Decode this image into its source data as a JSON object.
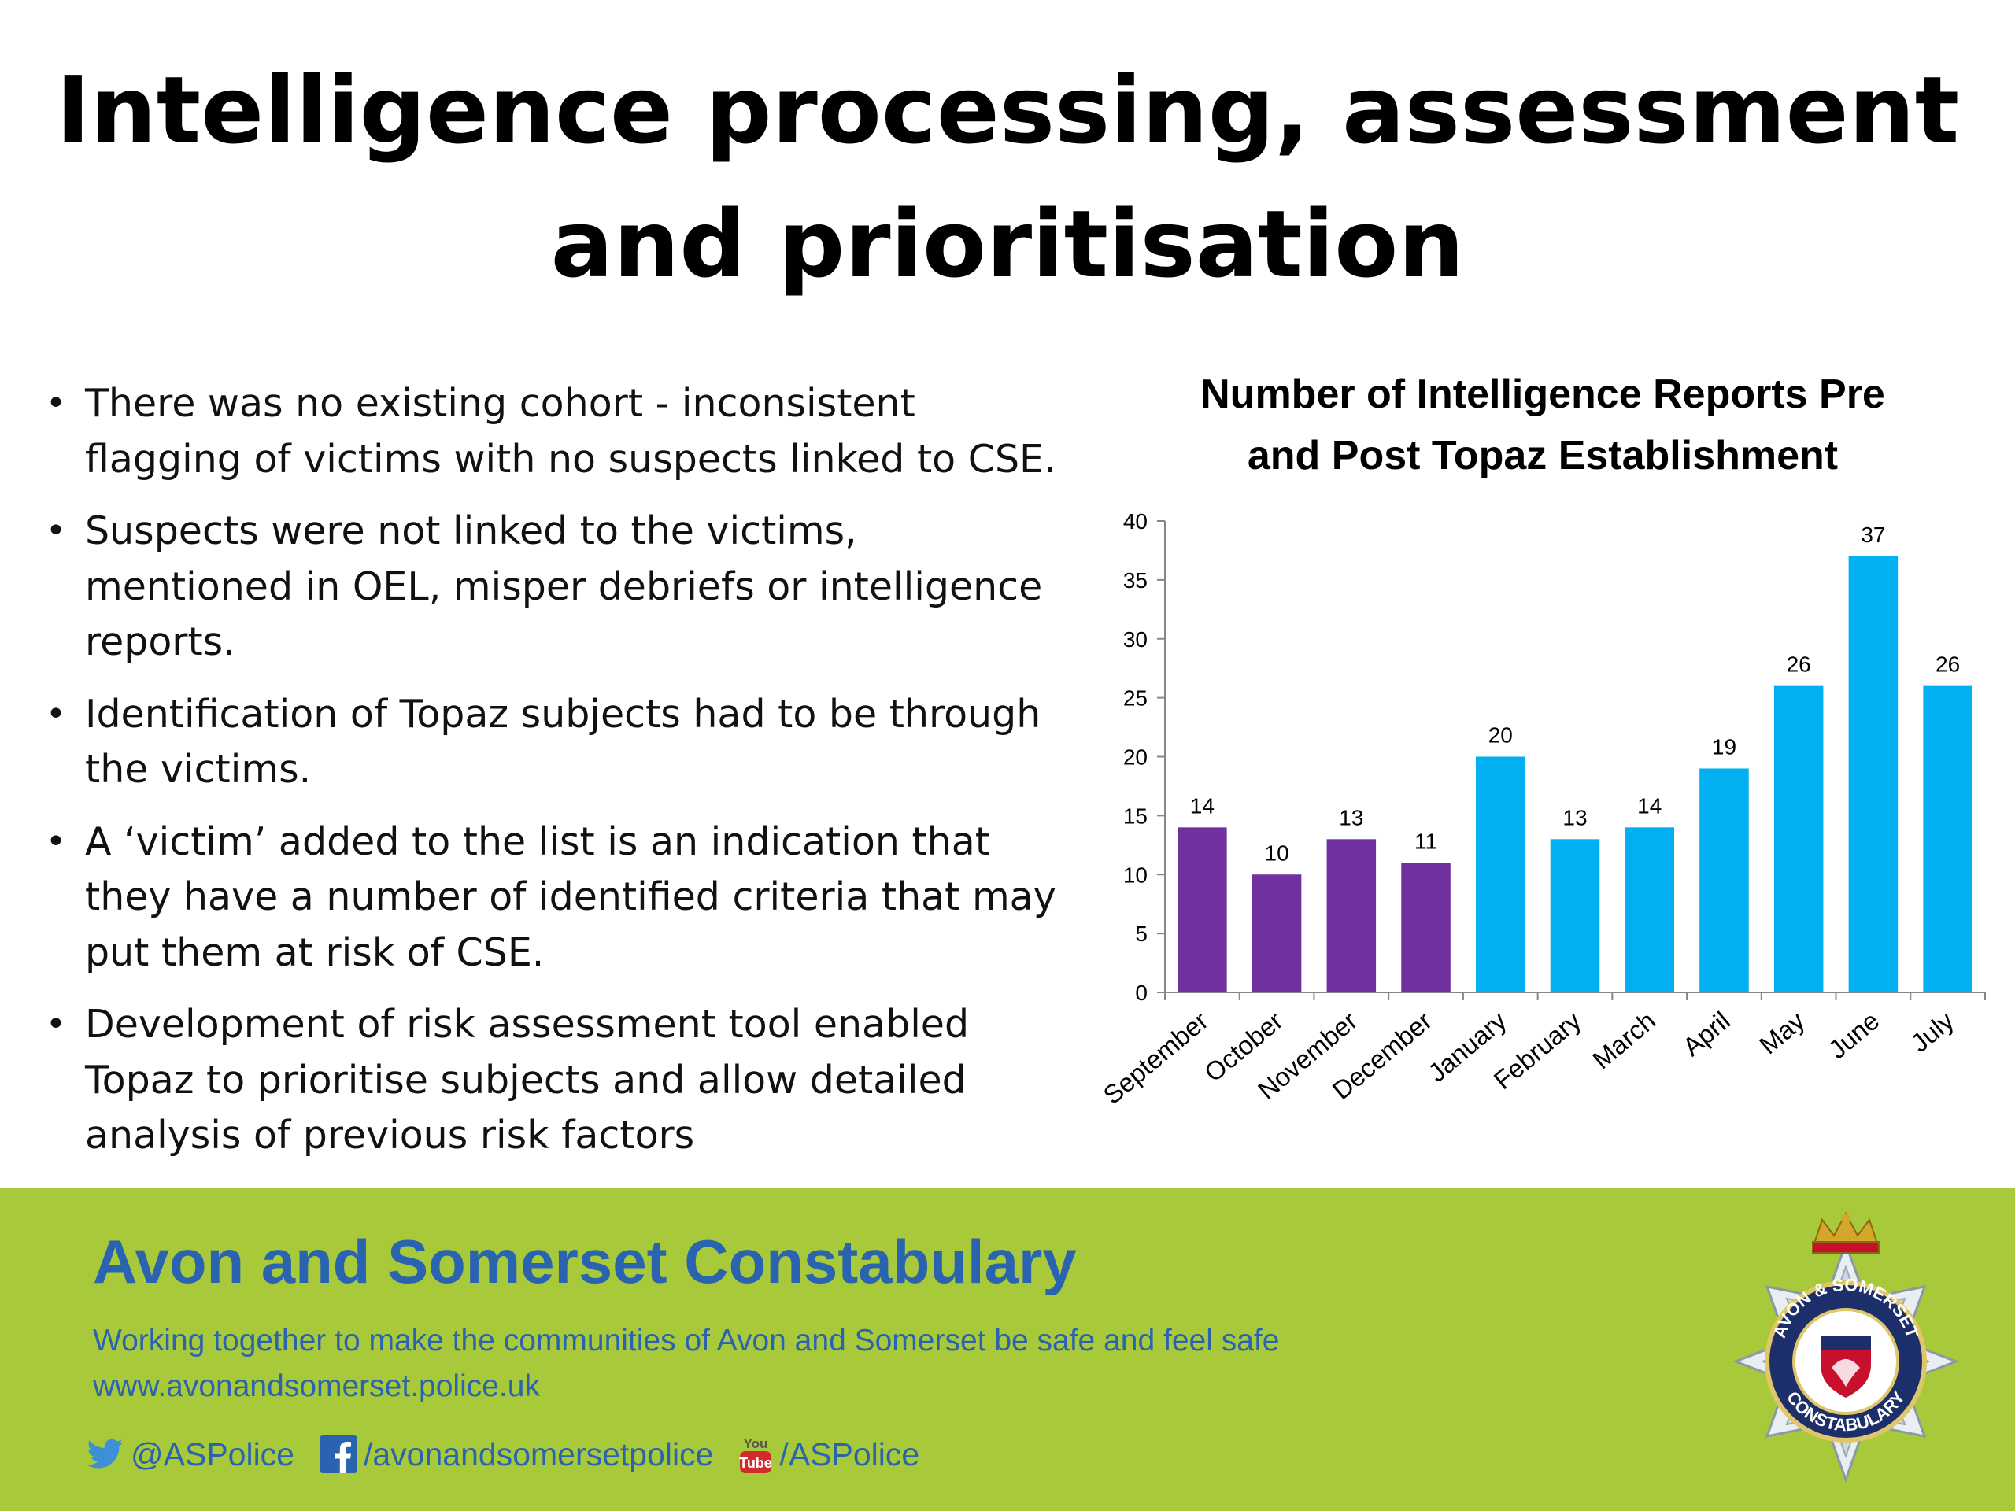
{
  "slide": {
    "title_line1": "Intelligence processing, assessment",
    "title_line2": "and prioritisation"
  },
  "bullets": [
    "There was no existing cohort - inconsistent flagging of victims with no suspects linked to CSE.",
    "Suspects were not linked to the victims, mentioned in OEL, misper debriefs or intelligence reports.",
    "Identification of Topaz subjects had to be through the victims.",
    "A ‘victim’ added to the list is an indication that they have a number of identified criteria that may put them at risk of CSE.",
    "Development of risk assessment tool enabled Topaz to prioritise subjects and allow detailed analysis of previous risk factors"
  ],
  "chart_data": {
    "type": "bar",
    "title_line1": "Number of Intelligence Reports Pre",
    "title_line2": "and Post Topaz Establishment",
    "categories": [
      "September",
      "October",
      "November",
      "December",
      "January",
      "February",
      "March",
      "April",
      "May",
      "June",
      "July"
    ],
    "values": [
      14,
      10,
      13,
      11,
      20,
      13,
      14,
      19,
      26,
      37,
      26
    ],
    "bar_colors": [
      "#7030a0",
      "#7030a0",
      "#7030a0",
      "#7030a0",
      "#00b0f0",
      "#00b0f0",
      "#00b0f0",
      "#00b0f0",
      "#00b0f0",
      "#00b0f0",
      "#00b0f0"
    ],
    "ylim": [
      0,
      40
    ],
    "yticks": [
      0,
      5,
      10,
      15,
      20,
      25,
      30,
      35,
      40
    ],
    "data_labels": true,
    "grid": false,
    "legend": "none"
  },
  "footer": {
    "org_name": "Avon and Somerset Constabulary",
    "tagline": "Working together to make the communities of Avon and Somerset be safe and feel safe",
    "website": "www.avonandsomerset.police.uk",
    "twitter": "@ASPolice",
    "facebook": "/avonandsomersetpolice",
    "youtube": "/ASPolice",
    "background_color": "#a8c93a",
    "text_color": "#2a64b0",
    "crest_text_top": "AVON & SOMERSET",
    "crest_text_bottom": "CONSTABULARY"
  }
}
